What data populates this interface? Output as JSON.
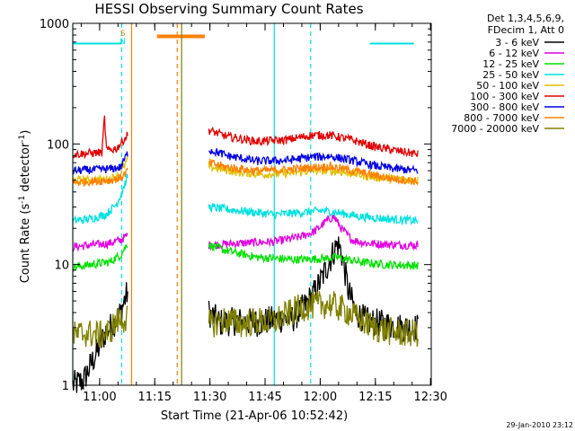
{
  "chart_data": {
    "type": "line",
    "title": "HESSI Observing Summary Count Rates",
    "xlabel": "Start Time (21-Apr-06 10:52:42)",
    "ylabel": "Count Rate (s⁻¹ detector⁻¹)",
    "y_scale": "log",
    "ylim": [
      1,
      1000
    ],
    "xlim_minutes_after_start": [
      0,
      97.5
    ],
    "x_ticks": [
      {
        "label": "11:00",
        "min": 7.3
      },
      {
        "label": "11:15",
        "min": 22.3
      },
      {
        "label": "11:30",
        "min": 37.3
      },
      {
        "label": "11:45",
        "min": 52.3
      },
      {
        "label": "12:00",
        "min": 67.3
      },
      {
        "label": "12:15",
        "min": 82.3
      },
      {
        "label": "12:30",
        "min": 97.3
      }
    ],
    "y_ticks": [
      {
        "label": "1",
        "value": 1
      },
      {
        "label": "10",
        "value": 10
      },
      {
        "label": "100",
        "value": 100
      },
      {
        "label": "1000",
        "value": 1000
      }
    ],
    "legend_header": [
      "Det 1,3,4,5,6,9,",
      "FDecim 1, Att 0"
    ],
    "legend_position": "right",
    "series": [
      {
        "name": "3 - 6 keV",
        "color": "#000000",
        "points": [
          [
            0,
            1
          ],
          [
            3,
            1.1
          ],
          [
            5,
            1.5
          ],
          [
            7,
            2
          ],
          [
            9,
            2.8
          ],
          [
            11,
            3.2
          ],
          [
            13,
            4
          ],
          [
            14,
            5
          ],
          [
            15,
            6
          ]
        ],
        "points2": [
          [
            37,
            4
          ],
          [
            40,
            3.3
          ],
          [
            45,
            3.4
          ],
          [
            50,
            3.3
          ],
          [
            55,
            3.5
          ],
          [
            60,
            3.6
          ],
          [
            63,
            4.5
          ],
          [
            66,
            6
          ],
          [
            68,
            8
          ],
          [
            70,
            11
          ],
          [
            72,
            15
          ],
          [
            73,
            13
          ],
          [
            75,
            6
          ],
          [
            77,
            4
          ],
          [
            80,
            3.4
          ],
          [
            85,
            3.2
          ],
          [
            90,
            3.0
          ],
          [
            94,
            3.0
          ]
        ]
      },
      {
        "name": "6 - 12 keV",
        "color": "#e000e0",
        "points": [
          [
            0,
            14
          ],
          [
            5,
            14.5
          ],
          [
            10,
            15
          ],
          [
            13,
            16
          ],
          [
            15,
            17.5
          ]
        ],
        "points2": [
          [
            37,
            14.5
          ],
          [
            45,
            15
          ],
          [
            55,
            15.5
          ],
          [
            62,
            17
          ],
          [
            66,
            19
          ],
          [
            69,
            23
          ],
          [
            71,
            25
          ],
          [
            73,
            20
          ],
          [
            76,
            16
          ],
          [
            80,
            15
          ],
          [
            90,
            14.5
          ],
          [
            94,
            14.5
          ]
        ]
      },
      {
        "name": "12 - 25 keV",
        "color": "#00e000",
        "points": [
          [
            0,
            9.5
          ],
          [
            5,
            10
          ],
          [
            10,
            10.5
          ],
          [
            13,
            12
          ],
          [
            15,
            15
          ]
        ],
        "points2": [
          [
            37,
            14.5
          ],
          [
            42,
            13
          ],
          [
            50,
            11.5
          ],
          [
            60,
            11
          ],
          [
            68,
            11.2
          ],
          [
            72,
            11.5
          ],
          [
            78,
            10.5
          ],
          [
            85,
            10
          ],
          [
            94,
            9.8
          ]
        ]
      },
      {
        "name": "25 - 50 keV",
        "color": "#00e0e0",
        "points": [
          [
            0,
            23
          ],
          [
            5,
            24
          ],
          [
            9,
            26
          ],
          [
            12,
            32
          ],
          [
            14,
            45
          ],
          [
            15,
            55
          ]
        ],
        "points2": [
          [
            37,
            30
          ],
          [
            45,
            28
          ],
          [
            55,
            26
          ],
          [
            62,
            27
          ],
          [
            68,
            28
          ],
          [
            72,
            27
          ],
          [
            78,
            25
          ],
          [
            85,
            24
          ],
          [
            94,
            23
          ]
        ]
      },
      {
        "name": "50 - 100 keV",
        "color": "#e0c000",
        "points": [
          [
            0,
            50
          ],
          [
            5,
            50.5
          ],
          [
            10,
            51
          ],
          [
            13,
            57
          ],
          [
            15,
            75
          ]
        ],
        "points2": [
          [
            37,
            65
          ],
          [
            45,
            58
          ],
          [
            52,
            56
          ],
          [
            58,
            57
          ],
          [
            65,
            60
          ],
          [
            70,
            60
          ],
          [
            76,
            57
          ],
          [
            82,
            53
          ],
          [
            88,
            51
          ],
          [
            94,
            50
          ]
        ]
      },
      {
        "name": "100 - 300 keV",
        "color": "#e00000",
        "points": [
          [
            0,
            82
          ],
          [
            5,
            84
          ],
          [
            8,
            85
          ],
          [
            8.6,
            170
          ],
          [
            9.2,
            88
          ],
          [
            12,
            92
          ],
          [
            15,
            120
          ]
        ],
        "points2": [
          [
            37,
            130
          ],
          [
            42,
            115
          ],
          [
            50,
            105
          ],
          [
            58,
            108
          ],
          [
            65,
            118
          ],
          [
            70,
            118
          ],
          [
            76,
            108
          ],
          [
            82,
            95
          ],
          [
            88,
            88
          ],
          [
            94,
            82
          ]
        ]
      },
      {
        "name": "300 - 800 keV",
        "color": "#0000e0",
        "points": [
          [
            0,
            60
          ],
          [
            5,
            61
          ],
          [
            10,
            62
          ],
          [
            13,
            64
          ],
          [
            15,
            85
          ]
        ],
        "points2": [
          [
            37,
            90
          ],
          [
            42,
            80
          ],
          [
            50,
            72
          ],
          [
            58,
            73
          ],
          [
            65,
            78
          ],
          [
            70,
            79
          ],
          [
            76,
            73
          ],
          [
            82,
            66
          ],
          [
            88,
            62
          ],
          [
            94,
            60
          ]
        ]
      },
      {
        "name": "800 - 7000 keV",
        "color": "#ff8000",
        "points": [
          [
            0,
            48
          ],
          [
            5,
            49
          ],
          [
            10,
            50
          ],
          [
            13,
            52
          ],
          [
            15,
            60
          ]
        ],
        "points2": [
          [
            37,
            70
          ],
          [
            42,
            64
          ],
          [
            50,
            60
          ],
          [
            58,
            61
          ],
          [
            65,
            64
          ],
          [
            70,
            65
          ],
          [
            76,
            60
          ],
          [
            82,
            55
          ],
          [
            88,
            51
          ],
          [
            94,
            49
          ]
        ]
      },
      {
        "name": "7000 - 20000 keV",
        "color": "#808000",
        "points": [
          [
            0,
            2.6
          ],
          [
            4,
            2.7
          ],
          [
            8,
            2.6
          ],
          [
            10,
            2.8
          ],
          [
            12,
            3.4
          ],
          [
            15,
            3.6
          ]
        ],
        "points2": [
          [
            37,
            3.2
          ],
          [
            42,
            3.5
          ],
          [
            46,
            3.2
          ],
          [
            50,
            3.4
          ],
          [
            54,
            3.3
          ],
          [
            58,
            3.8
          ],
          [
            62,
            4.4
          ],
          [
            66,
            4.6
          ],
          [
            70,
            4.7
          ],
          [
            74,
            4.2
          ],
          [
            78,
            3.5
          ],
          [
            82,
            3.0
          ],
          [
            86,
            2.8
          ],
          [
            90,
            2.7
          ],
          [
            94,
            2.7
          ]
        ]
      }
    ],
    "shading_intervals": [
      {
        "label": "S",
        "color": "#ff8000",
        "start_min": 22.9,
        "end_min": 35.9
      },
      {
        "label": "N",
        "color": "#00e0e0",
        "start_min": 0,
        "end_min": 13.3
      },
      {
        "label": "",
        "color": "#00e0e0",
        "start_min": 80.8,
        "end_min": 92.8
      }
    ],
    "vlines": [
      {
        "color": "#00e0e0",
        "min": 0,
        "dash": false
      },
      {
        "color": "#00e0e0",
        "min": 13.3,
        "dash": true
      },
      {
        "color": "#ff8000",
        "min": 16.0,
        "dash": false
      },
      {
        "color": "#ff8000",
        "min": 28.4,
        "dash": true
      },
      {
        "color": "#808000",
        "min": 29.6,
        "dash": false
      },
      {
        "color": "#00e0e0",
        "min": 54.8,
        "dash": false
      },
      {
        "color": "#00e0e0",
        "min": 64.7,
        "dash": true
      }
    ],
    "top_markers": [
      {
        "label": "S",
        "color": "#ff8000",
        "min": 13.6
      },
      {
        "label": "N",
        "color": "#00e0e0",
        "min": 13.6
      }
    ]
  },
  "footer_timestamp": "29-Jan-2010 23:12"
}
